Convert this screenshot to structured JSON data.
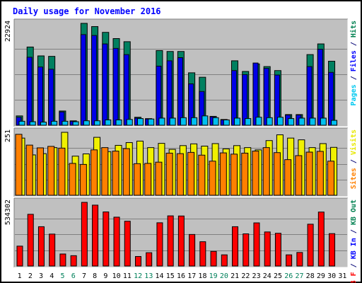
{
  "chart_data": {
    "type": "bar",
    "title": "Daily usage for November 2016",
    "categories": [
      "1",
      "2",
      "3",
      "4",
      "5",
      "6",
      "7",
      "8",
      "9",
      "10",
      "11",
      "12",
      "13",
      "14",
      "15",
      "16",
      "17",
      "18",
      "19",
      "20",
      "21",
      "22",
      "23",
      "24",
      "25",
      "26",
      "27",
      "28",
      "29",
      "30",
      "31"
    ],
    "weekend_days": [
      "5",
      "6",
      "12",
      "13",
      "19",
      "20",
      "26",
      "27"
    ],
    "panels": [
      {
        "max_label": "22924",
        "ymax": 22924,
        "labels": [
          {
            "text": "Pages",
            "color": "#00c8f0"
          },
          {
            "text": " / ",
            "color": "#0b0b7a"
          },
          {
            "text": "Files",
            "color": "#0000ff"
          },
          {
            "text": " / ",
            "color": "#0b0b7a"
          },
          {
            "text": "Hits",
            "color": "#008050"
          }
        ],
        "series": [
          {
            "name": "Hits",
            "color": "#008060",
            "values": [
              2100,
              17600,
              15600,
              15500,
              3200,
              1000,
              22924,
              22200,
              20900,
              19500,
              18800,
              1800,
              1500,
              16800,
              16600,
              16600,
              11800,
              10800,
              2000,
              1300,
              14500,
              12100,
              13800,
              13200,
              12300,
              2400,
              2400,
              15900,
              18300,
              14400,
              0
            ]
          },
          {
            "name": "Files",
            "color": "#0000e8",
            "values": [
              1800,
              15300,
              13100,
              12600,
              3000,
              900,
              20400,
              20200,
              18300,
              17300,
              15900,
              1600,
              1400,
              13300,
              14500,
              15200,
              9300,
              7600,
              1900,
              1200,
              12300,
              11400,
              14000,
              12800,
              11300,
              2300,
              2300,
              13200,
              17100,
              11900,
              0
            ]
          },
          {
            "name": "Pages",
            "color": "#00c0f0",
            "values": [
              900,
              800,
              700,
              900,
              900,
              800,
              1000,
              1000,
              1200,
              1200,
              1300,
              1500,
              1400,
              1600,
              1600,
              1700,
              1700,
              2100,
              1700,
              1200,
              1600,
              1500,
              1800,
              1700,
              1800,
              1500,
              1600,
              1600,
              1600,
              1100,
              0
            ]
          }
        ]
      },
      {
        "max_label": "251",
        "ymax": 251,
        "labels": [
          {
            "text": "Sites",
            "color": "#ff8000"
          },
          {
            "text": " / ",
            "color": "#0b0b7a"
          },
          {
            "text": "Visits",
            "color": "#e8e800"
          }
        ],
        "series": [
          {
            "name": "Visits",
            "color": "#f0f000",
            "values": [
              228,
              161,
              166,
              190,
              251,
              156,
              165,
              231,
              174,
              199,
              210,
              216,
              190,
              207,
              183,
              198,
              205,
              196,
              206,
              185,
              198,
              190,
              181,
              218,
              241,
              228,
              221,
              190,
              206,
              191,
              0
            ]
          },
          {
            "name": "Sites",
            "color": "#ff8000",
            "values": [
              243,
              200,
              189,
              195,
              188,
              127,
              123,
              181,
              190,
              176,
              186,
              126,
              127,
              132,
              168,
              166,
              171,
              160,
              136,
              169,
              164,
              168,
              176,
              190,
              170,
              142,
              158,
              172,
              175,
              136,
              0
            ]
          }
        ]
      },
      {
        "max_label": "534302",
        "ymax": 534302,
        "labels": [
          {
            "text": "KB F",
            "color": "#ff0000"
          },
          {
            "text": " / ",
            "color": "#0b0b7a"
          },
          {
            "text": "KB In",
            "color": "#0000ff"
          },
          {
            "text": " / ",
            "color": "#0b0b7a"
          },
          {
            "text": "KB Out",
            "color": "#008050"
          }
        ],
        "series": [
          {
            "name": "KB F",
            "color": "#ff0000",
            "values": [
              167000,
              434000,
              330000,
              268000,
              101000,
              87000,
              534302,
              511000,
              454000,
              410000,
              376000,
              80000,
              112000,
              363000,
              421000,
              420000,
              265000,
              204000,
              123000,
              94000,
              330000,
              270000,
              362000,
              286000,
              275000,
              94000,
              114000,
              351000,
              453000,
              272000,
              0
            ]
          }
        ]
      }
    ]
  }
}
